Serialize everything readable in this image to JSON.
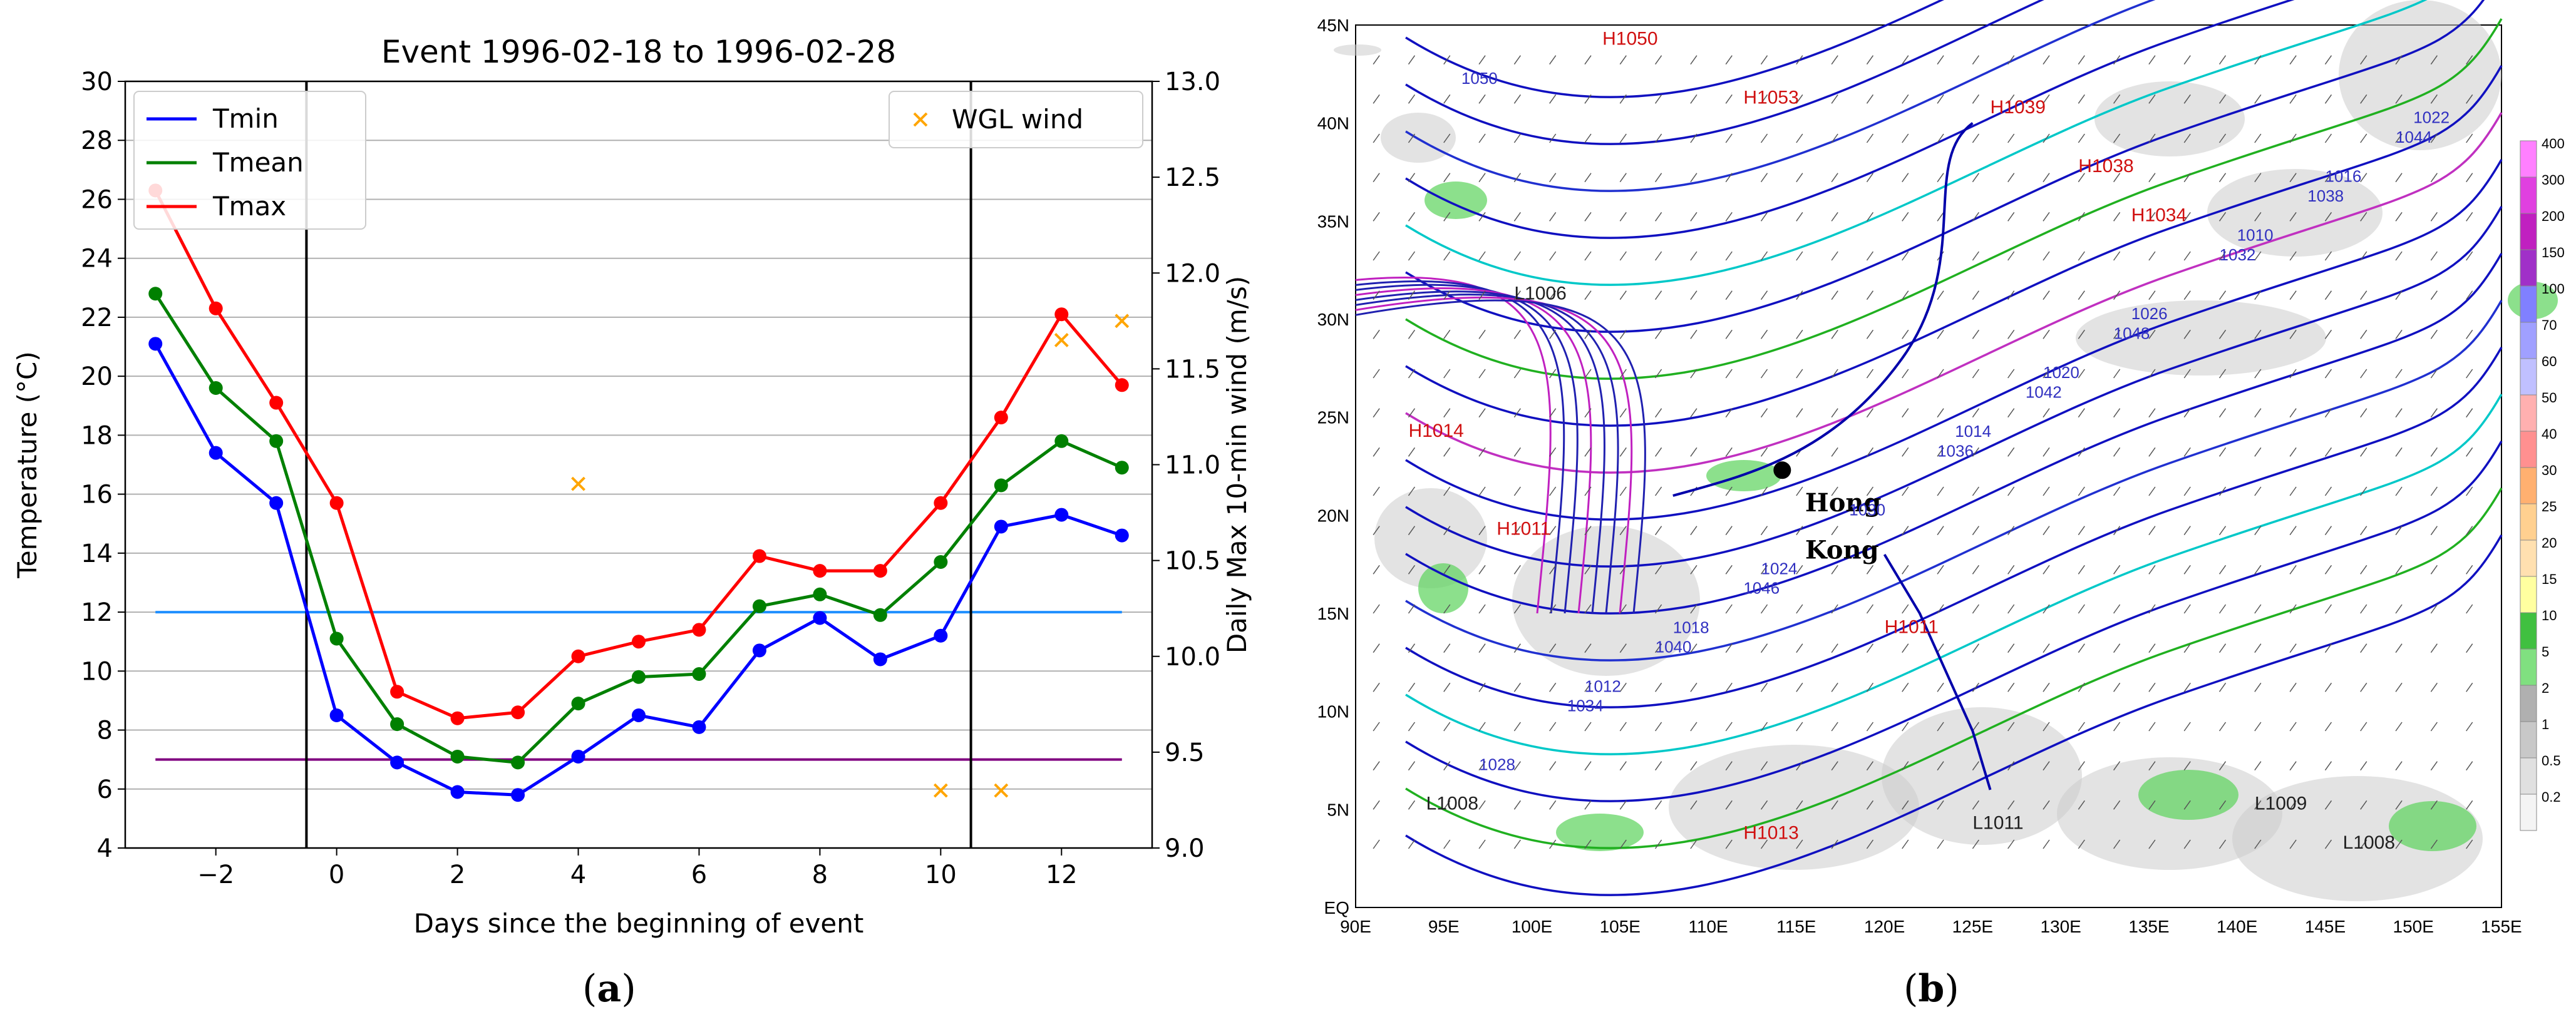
{
  "panel_labels": {
    "a": "a",
    "b": "b"
  },
  "chart_data": [
    {
      "type": "line",
      "title": "Event 1996-02-18 to 1996-02-28",
      "xlabel": "Days since the beginning of event",
      "ylabel": "Temperature (°C)",
      "y2label": "Daily Max 10-min wind (m/s)",
      "xlim": [
        -3.5,
        13.5
      ],
      "ylim": [
        4,
        30
      ],
      "y2lim": [
        9.0,
        13.0
      ],
      "xticks": [
        -2,
        0,
        2,
        4,
        6,
        8,
        10,
        12
      ],
      "xtick_labels": [
        "−2",
        "0",
        "2",
        "4",
        "6",
        "8",
        "10",
        "12"
      ],
      "yticks": [
        4,
        6,
        8,
        10,
        12,
        14,
        16,
        18,
        20,
        22,
        24,
        26,
        28,
        30
      ],
      "y2ticks": [
        9.0,
        9.5,
        10.0,
        10.5,
        11.0,
        11.5,
        12.0,
        12.5,
        13.0
      ],
      "y2tick_labels": [
        "9.0",
        "9.5",
        "10.0",
        "10.5",
        "11.0",
        "11.5",
        "12.0",
        "12.5",
        "13.0"
      ],
      "x": [
        -3,
        -2,
        -1,
        0,
        1,
        2,
        3,
        4,
        5,
        6,
        7,
        8,
        9,
        10,
        11,
        12,
        13
      ],
      "series": [
        {
          "name": "Tmin",
          "color": "#0000ff",
          "values": [
            21.1,
            17.4,
            15.7,
            8.5,
            6.9,
            5.9,
            5.8,
            7.1,
            8.5,
            8.1,
            10.7,
            11.8,
            10.4,
            11.2,
            14.9,
            15.3,
            14.6
          ]
        },
        {
          "name": "Tmean",
          "color": "#008000",
          "values": [
            22.8,
            19.6,
            17.8,
            11.1,
            8.2,
            7.1,
            6.9,
            8.9,
            9.8,
            9.9,
            12.2,
            12.6,
            11.9,
            13.7,
            16.3,
            17.8,
            16.9
          ]
        },
        {
          "name": "Tmax",
          "color": "#ff0000",
          "values": [
            26.3,
            22.3,
            19.1,
            15.7,
            9.3,
            8.4,
            8.6,
            10.5,
            11.0,
            11.4,
            13.9,
            13.4,
            13.4,
            15.7,
            18.6,
            22.1,
            19.7
          ]
        }
      ],
      "scatter": {
        "name": "WGL wind",
        "color": "#ffa500",
        "axis": "y2",
        "x": [
          4,
          10,
          11,
          12,
          13
        ],
        "values": [
          10.9,
          9.3,
          9.3,
          11.65,
          11.75
        ]
      },
      "hlines": [
        {
          "y": 12,
          "color": "#1f8fff"
        },
        {
          "y": 7,
          "color": "#800080"
        }
      ],
      "vlines": [
        -0.5,
        10.5
      ],
      "legend": [
        "top-left",
        "top-right"
      ],
      "grid": "horizontal"
    },
    {
      "type": "map",
      "lat_labels": [
        "45N",
        "40N",
        "35N",
        "30N",
        "25N",
        "20N",
        "15N",
        "10N",
        "5N",
        "EQ"
      ],
      "lon_labels": [
        "90E",
        "95E",
        "100E",
        "105E",
        "110E",
        "115E",
        "120E",
        "125E",
        "130E",
        "135E",
        "140E",
        "145E",
        "150E",
        "155E"
      ],
      "location_label": "Hong Kong",
      "colorbar_labels": [
        "400",
        "300",
        "200",
        "150",
        "100",
        "70",
        "60",
        "50",
        "40",
        "30",
        "25",
        "20",
        "15",
        "10",
        "5",
        "2",
        "1",
        "0.5",
        "0.2"
      ],
      "colorbar_colors": [
        "#ff80ff",
        "#e040e0",
        "#c020c0",
        "#a030c8",
        "#8080ff",
        "#a0a0ff",
        "#c0c0ff",
        "#ffb0b0",
        "#ff9090",
        "#ffb070",
        "#ffd090",
        "#ffe0b0",
        "#ffffa0",
        "#40c040",
        "#80e080",
        "#b0b0b0",
        "#c8c8c8",
        "#e0e0e0",
        "#f4f4f4"
      ],
      "pressure_labels": [
        "1050",
        "1048",
        "1046",
        "1044",
        "1042",
        "1040",
        "1038",
        "1036",
        "1034",
        "1032",
        "1030",
        "1028",
        "1026",
        "1024",
        "1022",
        "1020",
        "1018",
        "1016",
        "1014",
        "1012",
        "1010"
      ],
      "high_centers": [
        "H1050",
        "H1053",
        "H1039",
        "H1038",
        "H1034",
        "H1014",
        "H1011",
        "H1011",
        "H1013"
      ],
      "low_centers": [
        "L1006",
        "L1008",
        "L1009",
        "L1008",
        "L1011"
      ]
    }
  ]
}
